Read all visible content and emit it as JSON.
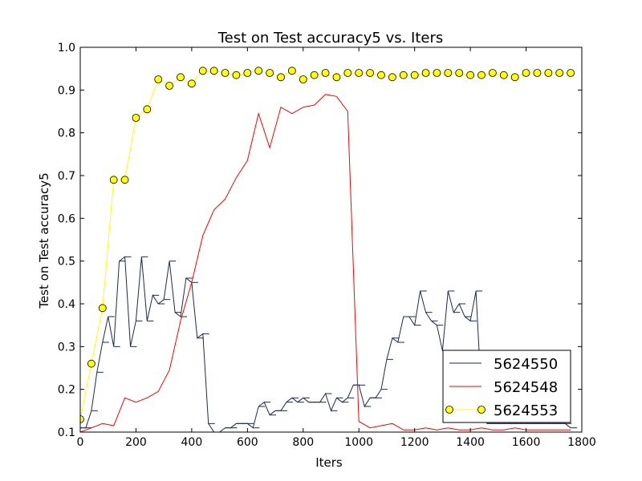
{
  "chart_data": {
    "type": "line",
    "title": "Test on Test accuracy5  vs. Iters",
    "xlabel": "Iters",
    "ylabel": "Test on Test accuracy5",
    "xlim": [
      0,
      1800
    ],
    "ylim": [
      0.1,
      1.0
    ],
    "xticks": [
      0,
      200,
      400,
      600,
      800,
      1000,
      1200,
      1400,
      1600,
      1800
    ],
    "yticks": [
      0.1,
      0.2,
      0.3,
      0.4,
      0.5,
      0.6,
      0.7,
      0.8,
      0.9,
      1.0
    ],
    "grid": false,
    "legend_position": "lower-right",
    "series": [
      {
        "name": "5624550",
        "color": "#1a2a4f",
        "marker": "tick",
        "x": [
          0,
          20,
          40,
          60,
          80,
          100,
          120,
          140,
          160,
          180,
          200,
          220,
          240,
          260,
          280,
          300,
          320,
          340,
          360,
          380,
          400,
          420,
          440,
          460,
          480,
          500,
          520,
          540,
          560,
          580,
          600,
          620,
          640,
          660,
          680,
          700,
          720,
          740,
          760,
          780,
          800,
          820,
          840,
          860,
          880,
          900,
          920,
          940,
          960,
          980,
          1000,
          1020,
          1040,
          1060,
          1080,
          1100,
          1120,
          1140,
          1160,
          1180,
          1200,
          1220,
          1240,
          1260,
          1280,
          1300,
          1320,
          1340,
          1360,
          1380,
          1400,
          1420,
          1440,
          1460,
          1480,
          1500,
          1520,
          1540,
          1560,
          1580,
          1600,
          1620,
          1640,
          1660,
          1680,
          1700,
          1720,
          1740,
          1760
        ],
        "values": [
          0.11,
          0.11,
          0.15,
          0.24,
          0.31,
          0.37,
          0.3,
          0.5,
          0.51,
          0.3,
          0.36,
          0.51,
          0.36,
          0.42,
          0.4,
          0.41,
          0.5,
          0.38,
          0.37,
          0.46,
          0.45,
          0.32,
          0.33,
          0.12,
          0.1,
          0.1,
          0.11,
          0.11,
          0.12,
          0.12,
          0.12,
          0.11,
          0.16,
          0.17,
          0.14,
          0.15,
          0.15,
          0.17,
          0.18,
          0.17,
          0.18,
          0.17,
          0.17,
          0.17,
          0.19,
          0.15,
          0.18,
          0.17,
          0.18,
          0.21,
          0.21,
          0.16,
          0.18,
          0.18,
          0.2,
          0.27,
          0.32,
          0.31,
          0.37,
          0.37,
          0.35,
          0.43,
          0.38,
          0.36,
          0.35,
          0.29,
          0.43,
          0.38,
          0.4,
          0.37,
          0.36,
          0.43,
          0.18,
          0.12,
          0.12,
          0.12,
          0.12,
          0.12,
          0.12,
          0.12,
          0.12,
          0.12,
          0.12,
          0.12,
          0.12,
          0.12,
          0.12,
          0.12,
          0.11
        ]
      },
      {
        "name": "5624548",
        "color": "#ff0000",
        "marker": "none",
        "x": [
          0,
          40,
          80,
          120,
          160,
          200,
          240,
          280,
          320,
          360,
          400,
          440,
          480,
          520,
          560,
          600,
          640,
          680,
          720,
          760,
          800,
          840,
          880,
          920,
          960,
          1000,
          1040,
          1080,
          1120,
          1160,
          1200,
          1240,
          1280,
          1320,
          1360,
          1400,
          1440,
          1480,
          1520,
          1560,
          1600,
          1640,
          1680,
          1720,
          1760
        ],
        "values": [
          0.1,
          0.11,
          0.12,
          0.115,
          0.18,
          0.17,
          0.18,
          0.195,
          0.245,
          0.36,
          0.45,
          0.56,
          0.62,
          0.645,
          0.695,
          0.735,
          0.845,
          0.765,
          0.86,
          0.845,
          0.86,
          0.865,
          0.89,
          0.885,
          0.85,
          0.125,
          0.11,
          0.115,
          0.12,
          0.105,
          0.105,
          0.11,
          0.105,
          0.11,
          0.105,
          0.105,
          0.11,
          0.105,
          0.105,
          0.11,
          0.105,
          0.105,
          0.105,
          0.105,
          0.105
        ]
      },
      {
        "name": "5624553",
        "color": "#ffff00",
        "marker": "circle",
        "x": [
          0,
          40,
          80,
          120,
          160,
          200,
          240,
          280,
          320,
          360,
          400,
          440,
          480,
          520,
          560,
          600,
          640,
          680,
          720,
          760,
          800,
          840,
          880,
          920,
          960,
          1000,
          1040,
          1080,
          1120,
          1160,
          1200,
          1240,
          1280,
          1320,
          1360,
          1400,
          1440,
          1480,
          1520,
          1560,
          1600,
          1640,
          1680,
          1720,
          1760
        ],
        "values": [
          0.13,
          0.26,
          0.39,
          0.69,
          0.69,
          0.835,
          0.855,
          0.925,
          0.91,
          0.93,
          0.915,
          0.945,
          0.945,
          0.94,
          0.935,
          0.94,
          0.945,
          0.94,
          0.93,
          0.945,
          0.925,
          0.935,
          0.94,
          0.93,
          0.94,
          0.94,
          0.94,
          0.935,
          0.93,
          0.935,
          0.935,
          0.94,
          0.94,
          0.94,
          0.94,
          0.935,
          0.935,
          0.94,
          0.935,
          0.93,
          0.94,
          0.94,
          0.94,
          0.94,
          0.94
        ]
      }
    ]
  }
}
